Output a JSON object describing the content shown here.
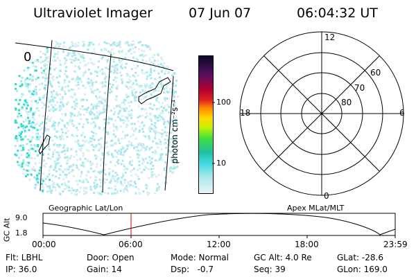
{
  "header": {
    "title": "Ultraviolet Imager",
    "date": "07 Jun 07",
    "time": "06:04:32 UT"
  },
  "image_panel": {
    "grid_label": "Geographic Lat/Lon",
    "corner_label": "0"
  },
  "colorbar": {
    "unit_label": "photon cm⁻²s⁻¹",
    "ticks": [
      "100",
      "10"
    ],
    "colors": [
      "#0a0a2a",
      "#5a1060",
      "#b00030",
      "#e02020",
      "#ff8c00",
      "#ffd800",
      "#c8f000",
      "#40e040",
      "#20c0a0",
      "#40d8e0",
      "#a8e8ec",
      "#e8f4f6"
    ]
  },
  "polar_plot": {
    "title": "Apex MLat/MLT",
    "mlt_labels": {
      "top": "12",
      "left": "18",
      "right": "6",
      "bottom": "0"
    },
    "mlat_labels": [
      "60",
      "70",
      "80"
    ]
  },
  "altitude_panel": {
    "ylabel": "GC Alt",
    "yticks": [
      "9.0",
      "1.8"
    ],
    "xticks": [
      "00:00",
      "06:00",
      "12:00",
      "18:00",
      "23:59"
    ]
  },
  "info": {
    "flt": "Flt: LBHL",
    "ip": "IP: 36.0",
    "door": "Door: Open",
    "gain": "Gain: 14",
    "mode": "Mode: Normal",
    "dsp": "Dsp:   -0.7",
    "gc_alt": "GC Alt: 4.0 Re",
    "seq": "Seq: 39",
    "glat": "GLat: -28.6",
    "glon": "GLon: 169.0"
  }
}
